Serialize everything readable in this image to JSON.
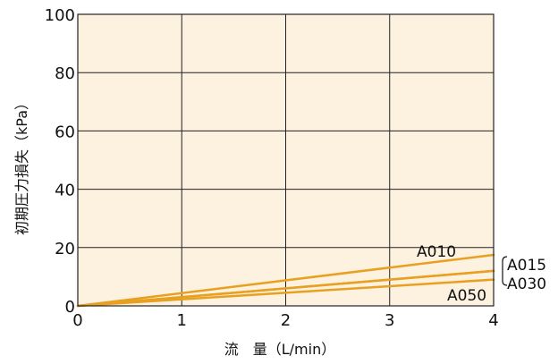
{
  "chart_data": {
    "type": "line",
    "title": "",
    "xlabel": "流　量（L/min）",
    "ylabel": "初期圧力損失（kPa）",
    "xlim": [
      0,
      4
    ],
    "ylim": [
      0,
      100
    ],
    "x_ticks": [
      "0",
      "1",
      "2",
      "3",
      "4"
    ],
    "y_ticks": [
      "0",
      "20",
      "40",
      "60",
      "80",
      "100"
    ],
    "grid": true,
    "background_color": "#fdf1e0",
    "grid_color": "#222222",
    "line_color": "#e8a020",
    "series": [
      {
        "name": "A010",
        "x": [
          0,
          4
        ],
        "y": [
          0,
          17.5
        ]
      },
      {
        "name": "A015",
        "x": [
          0,
          4
        ],
        "y": [
          0,
          12
        ]
      },
      {
        "name": "A030",
        "x": [
          0,
          4
        ],
        "y": [
          0,
          12
        ]
      },
      {
        "name": "A050",
        "x": [
          0,
          4
        ],
        "y": [
          0,
          9
        ]
      }
    ]
  }
}
